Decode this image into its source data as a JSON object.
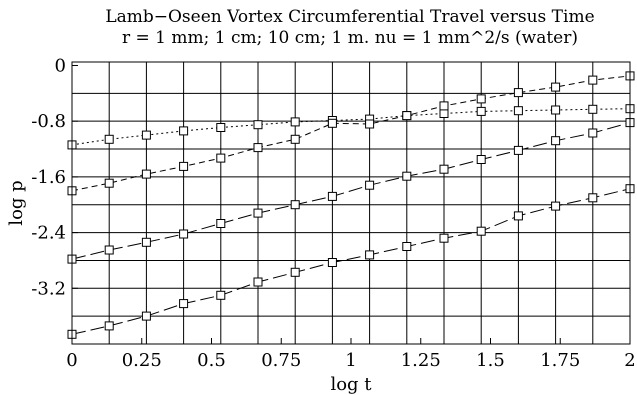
{
  "chart_data": {
    "type": "line",
    "title": "Lamb−Oseen Vortex Circumferential Travel versus Time",
    "subtitle": "r = 1 mm; 1 cm; 10 cm; 1 m.  nu = 1 mm^2/s (water)",
    "xlabel": "log t",
    "ylabel": "log p",
    "xlim": [
      0,
      2
    ],
    "ylim": [
      -4.0,
      0.05
    ],
    "x_ticks": [
      "0",
      "0.25",
      "0.5",
      "0.75",
      "1",
      "1.25",
      "1.5",
      "1.75",
      "2"
    ],
    "y_ticks": [
      "0",
      "-0.8",
      "-1.6",
      "-2.4",
      "-3.2"
    ],
    "grid": true,
    "legend": "none",
    "series": [
      {
        "marker": "square",
        "dash": "dotted",
        "x": [
          0,
          0.1333,
          0.2667,
          0.4,
          0.5333,
          0.6667,
          0.8,
          0.9333,
          1.0667,
          1.2,
          1.3333,
          1.4667,
          1.6,
          1.7333,
          1.8667,
          2.0
        ],
        "y": [
          -1.14,
          -1.06,
          -1.0,
          -0.94,
          -0.89,
          -0.85,
          -0.81,
          -0.79,
          -0.77,
          -0.72,
          -0.69,
          -0.66,
          -0.65,
          -0.64,
          -0.63,
          -0.62
        ]
      },
      {
        "marker": "square",
        "dash": "short-dash",
        "x": [
          0,
          0.1333,
          0.2667,
          0.4,
          0.5333,
          0.6667,
          0.8,
          0.9333,
          1.0667,
          1.2,
          1.3333,
          1.4667,
          1.6,
          1.7333,
          1.8667,
          2.0
        ],
        "y": [
          -1.8,
          -1.69,
          -1.56,
          -1.45,
          -1.33,
          -1.18,
          -1.06,
          -0.83,
          -0.84,
          -0.72,
          -0.58,
          -0.48,
          -0.39,
          -0.31,
          -0.21,
          -0.15
        ]
      },
      {
        "marker": "square",
        "dash": "long-dash",
        "x": [
          0,
          0.1333,
          0.2667,
          0.4,
          0.5333,
          0.6667,
          0.8,
          0.9333,
          1.0667,
          1.2,
          1.3333,
          1.4667,
          1.6,
          1.7333,
          1.8667,
          2.0
        ],
        "y": [
          -2.78,
          -2.65,
          -2.54,
          -2.42,
          -2.27,
          -2.12,
          -2.0,
          -1.88,
          -1.72,
          -1.59,
          -1.49,
          -1.35,
          -1.22,
          -1.08,
          -0.97,
          -0.82
        ]
      },
      {
        "marker": "square",
        "dash": "long-dash",
        "x": [
          0,
          0.1333,
          0.2667,
          0.4,
          0.5333,
          0.6667,
          0.8,
          0.9333,
          1.0667,
          1.2,
          1.3333,
          1.4667,
          1.6,
          1.7333,
          1.8667,
          2.0
        ],
        "y": [
          -3.86,
          -3.74,
          -3.6,
          -3.42,
          -3.3,
          -3.11,
          -2.97,
          -2.83,
          -2.72,
          -2.6,
          -2.48,
          -2.38,
          -2.16,
          -2.02,
          -1.9,
          -1.77
        ]
      }
    ]
  }
}
